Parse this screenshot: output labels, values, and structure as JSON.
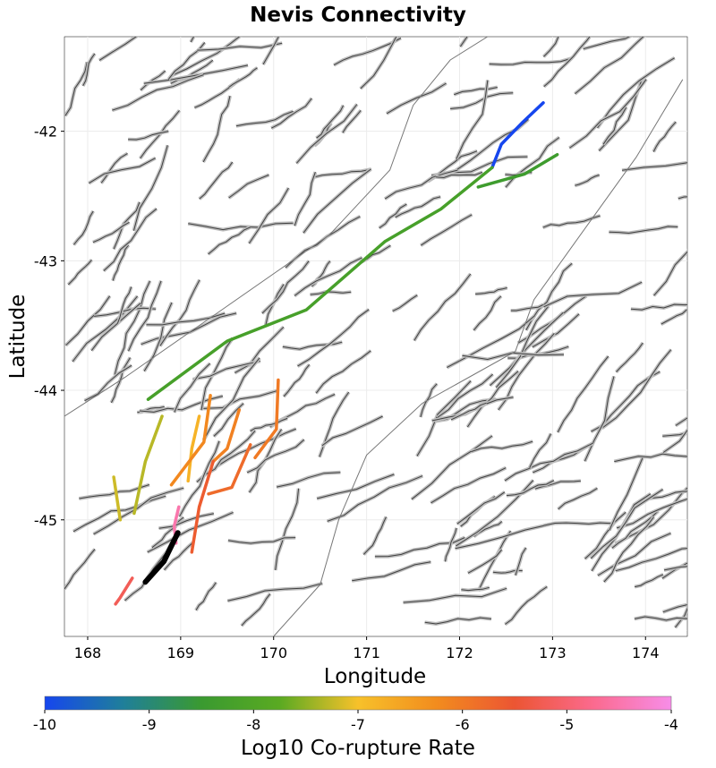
{
  "chart_data": {
    "type": "map",
    "title": "Nevis Connectivity",
    "xlabel": "Longitude",
    "ylabel": "Latitude",
    "xlim": [
      167.75,
      174.45
    ],
    "ylim": [
      -45.9,
      -41.27
    ],
    "x_ticks": [
      168,
      169,
      170,
      171,
      172,
      173,
      174
    ],
    "y_ticks": [
      -42,
      -43,
      -44,
      -45
    ],
    "grid": true,
    "colorbar": {
      "label": "Log10 Co-rupture Rate",
      "range": [
        -10,
        -4
      ],
      "ticks": [
        -10,
        -9,
        -8,
        -7,
        -6,
        -5,
        -4
      ],
      "colors": [
        "#1646ee",
        "#1f7f9a",
        "#3a9a30",
        "#5aaa22",
        "#f7c12a",
        "#f28c1e",
        "#ec5533",
        "#fb6a8e",
        "#f78de8"
      ]
    },
    "highlighted_faults": [
      {
        "name": "",
        "log10_rate": -10,
        "points": [
          [
            172.35,
            -42.28
          ],
          [
            172.45,
            -42.1
          ],
          [
            172.68,
            -41.93
          ],
          [
            172.9,
            -41.78
          ]
        ]
      },
      {
        "name": "",
        "log10_rate": -8.2,
        "points": [
          [
            168.65,
            -44.07
          ],
          [
            169.5,
            -43.62
          ],
          [
            170.35,
            -43.38
          ],
          [
            171.2,
            -42.85
          ],
          [
            171.8,
            -42.6
          ],
          [
            172.35,
            -42.28
          ]
        ]
      },
      {
        "name": "",
        "log10_rate": -8.4,
        "points": [
          [
            172.2,
            -42.43
          ],
          [
            172.7,
            -42.33
          ],
          [
            173.05,
            -42.18
          ]
        ]
      },
      {
        "name": "",
        "log10_rate": -7.3,
        "points": [
          [
            168.8,
            -44.2
          ],
          [
            168.62,
            -44.55
          ],
          [
            168.5,
            -44.95
          ]
        ]
      },
      {
        "name": "",
        "log10_rate": -7.2,
        "points": [
          [
            168.28,
            -44.67
          ],
          [
            168.35,
            -45.0
          ]
        ]
      },
      {
        "name": "",
        "log10_rate": -6.8,
        "points": [
          [
            169.2,
            -44.2
          ],
          [
            169.12,
            -44.45
          ],
          [
            169.08,
            -44.7
          ]
        ]
      },
      {
        "name": "",
        "log10_rate": -6.2,
        "points": [
          [
            169.32,
            -44.04
          ],
          [
            169.25,
            -44.4
          ],
          [
            168.9,
            -44.73
          ]
        ]
      },
      {
        "name": "",
        "log10_rate": -6.1,
        "points": [
          [
            169.63,
            -44.15
          ],
          [
            169.5,
            -44.45
          ],
          [
            169.35,
            -44.55
          ]
        ]
      },
      {
        "name": "",
        "log10_rate": -6.0,
        "points": [
          [
            170.05,
            -43.92
          ],
          [
            170.03,
            -44.3
          ],
          [
            169.8,
            -44.52
          ]
        ]
      },
      {
        "name": "",
        "log10_rate": -5.8,
        "points": [
          [
            169.75,
            -44.42
          ],
          [
            169.55,
            -44.75
          ],
          [
            169.3,
            -44.8
          ]
        ]
      },
      {
        "name": "",
        "log10_rate": -5.6,
        "points": [
          [
            169.35,
            -44.55
          ],
          [
            169.2,
            -44.9
          ],
          [
            169.12,
            -45.25
          ]
        ]
      },
      {
        "name": "",
        "log10_rate": -5.2,
        "points": [
          [
            168.48,
            -45.45
          ],
          [
            168.35,
            -45.6
          ],
          [
            168.3,
            -45.65
          ]
        ]
      },
      {
        "name": "",
        "log10_rate": -4.5,
        "points": [
          [
            168.98,
            -44.9
          ],
          [
            168.93,
            -45.05
          ],
          [
            168.95,
            -45.18
          ]
        ]
      },
      {
        "name": "",
        "log10_rate": -11,
        "points": [
          [
            168.97,
            -45.1
          ],
          [
            168.82,
            -45.32
          ],
          [
            168.62,
            -45.48
          ]
        ]
      }
    ]
  }
}
